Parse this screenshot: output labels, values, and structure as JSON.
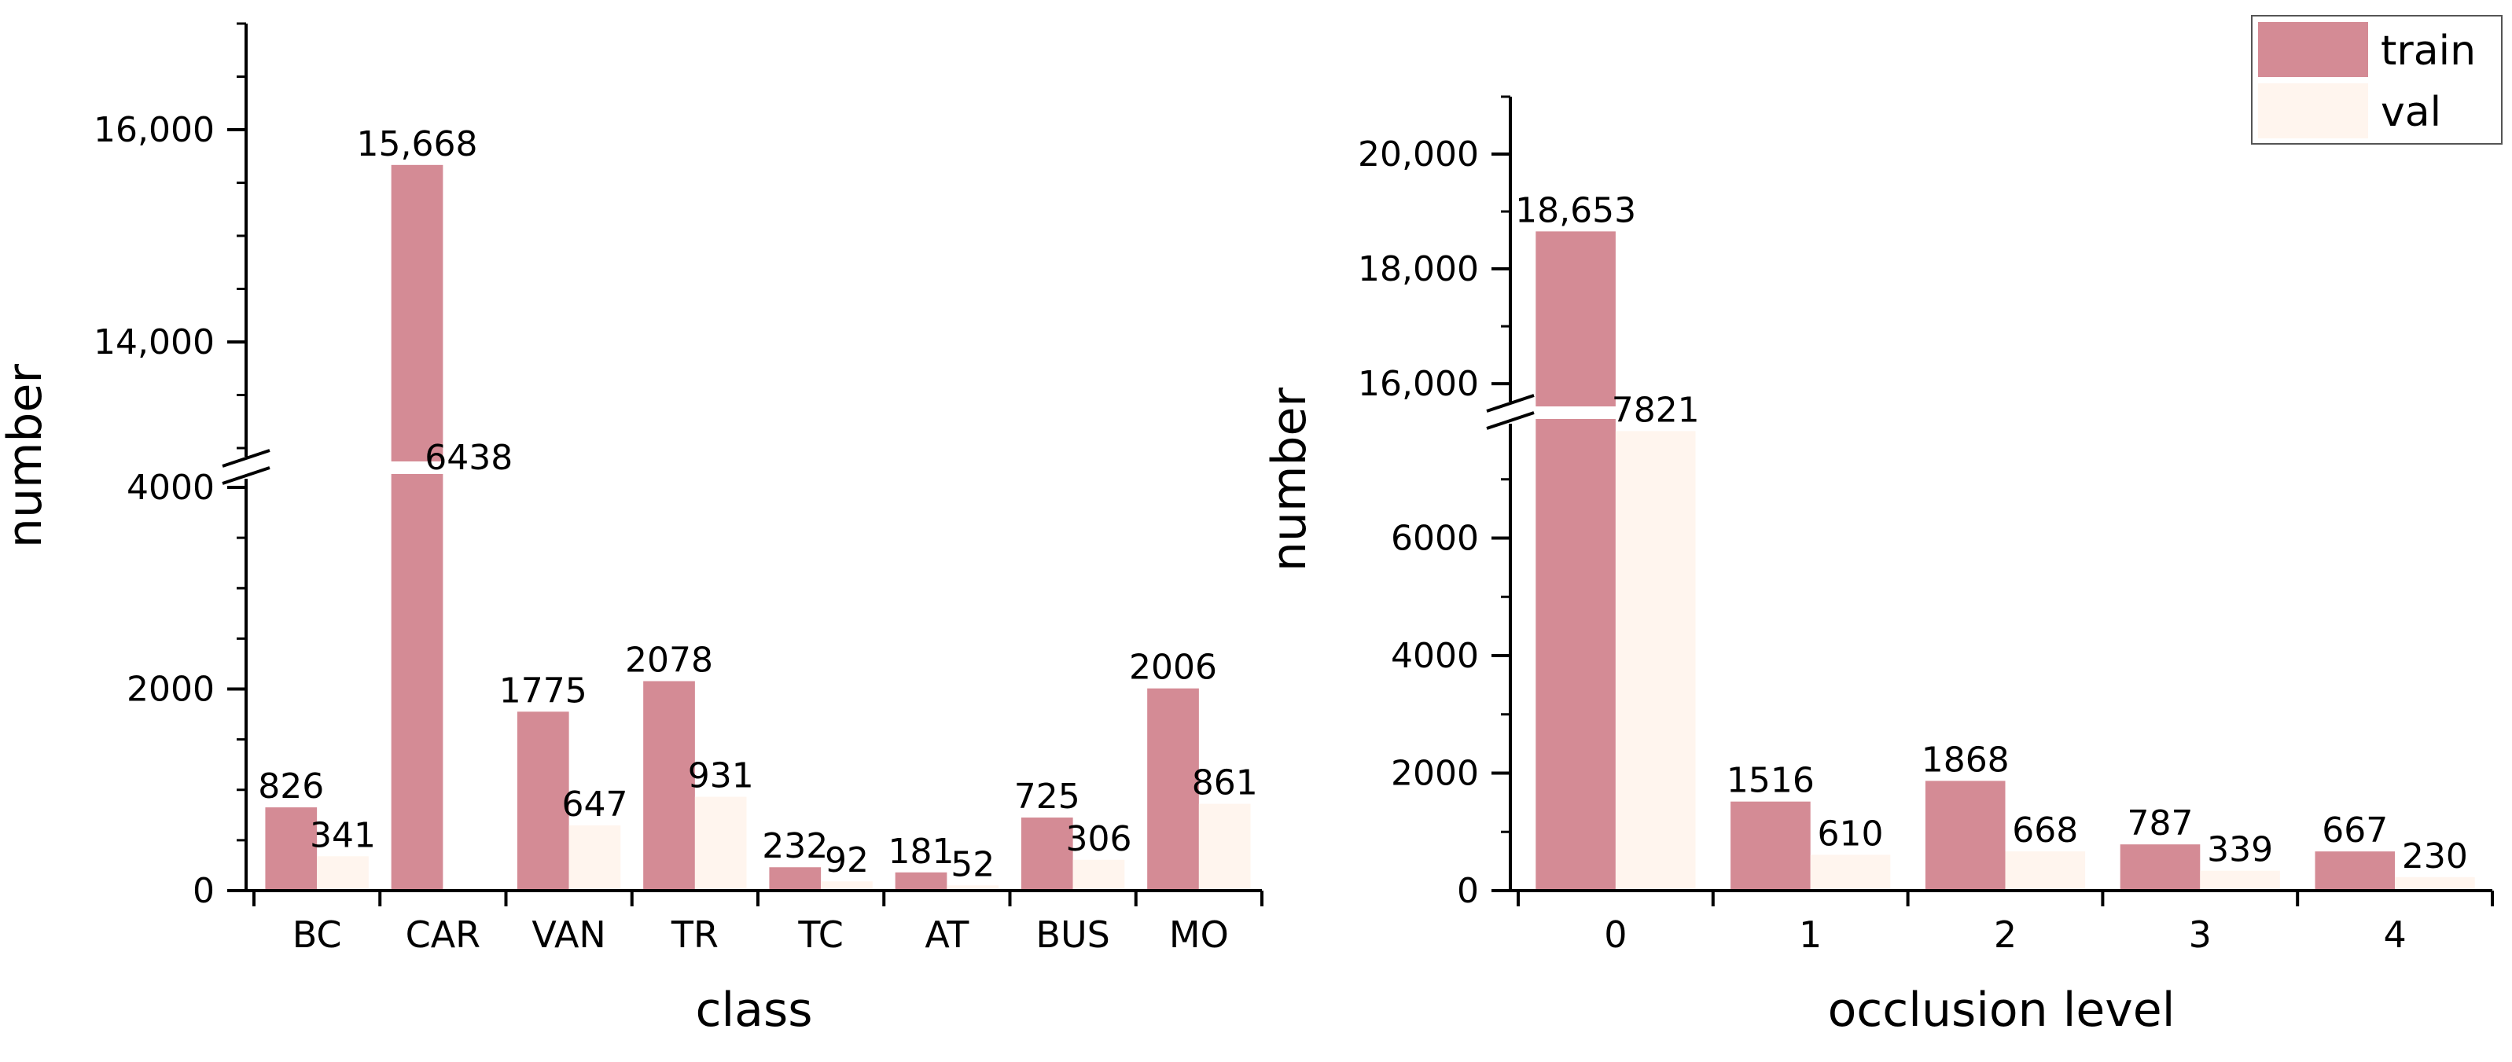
{
  "colors": {
    "train": "#d48b95",
    "val": "#fff5ee",
    "axis": "#000000",
    "background": "#ffffff"
  },
  "legend": {
    "placement": "top-right",
    "items": [
      "train",
      "val"
    ]
  },
  "chart_data": [
    {
      "type": "bar",
      "title": "",
      "xlabel": "class",
      "ylabel": "number",
      "categories": [
        "BC",
        "CAR",
        "VAN",
        "TR",
        "TC",
        "AT",
        "BUS",
        "MO"
      ],
      "series": [
        {
          "name": "train",
          "values": [
            826,
            15668,
            1775,
            2078,
            232,
            181,
            725,
            2006
          ]
        },
        {
          "name": "val",
          "values": [
            341,
            6438,
            647,
            931,
            92,
            52,
            306,
            861
          ]
        }
      ],
      "data_labels": {
        "train": [
          "826",
          "15,668",
          "1775",
          "2078",
          "232",
          "181",
          "725",
          "2006"
        ],
        "val": [
          "341",
          "6438",
          "647",
          "931",
          "92",
          "52",
          "306",
          "861"
        ]
      },
      "axis_break": {
        "lower_range": [
          0,
          4000
        ],
        "upper_range": [
          13000,
          17000
        ]
      },
      "yticks_lower": [
        "0",
        "2000",
        "4000"
      ],
      "yticks_upper": [
        "14,000",
        "16,000"
      ],
      "grid": false
    },
    {
      "type": "bar",
      "title": "",
      "xlabel": "occlusion level",
      "ylabel": "number",
      "categories": [
        "0",
        "1",
        "2",
        "3",
        "4"
      ],
      "series": [
        {
          "name": "train",
          "values": [
            18653,
            1516,
            1868,
            787,
            667
          ]
        },
        {
          "name": "val",
          "values": [
            7821,
            610,
            668,
            339,
            230
          ]
        }
      ],
      "data_labels": {
        "train": [
          "18,653",
          "1516",
          "1868",
          "787",
          "667"
        ],
        "val": [
          "7821",
          "610",
          "668",
          "339",
          "230"
        ]
      },
      "axis_break": {
        "lower_range": [
          0,
          8000
        ],
        "upper_range": [
          15700,
          21000
        ]
      },
      "yticks_lower": [
        "0",
        "2000",
        "4000",
        "6000"
      ],
      "yticks_upper": [
        "16,000",
        "18,000",
        "20,000"
      ],
      "grid": false
    }
  ]
}
